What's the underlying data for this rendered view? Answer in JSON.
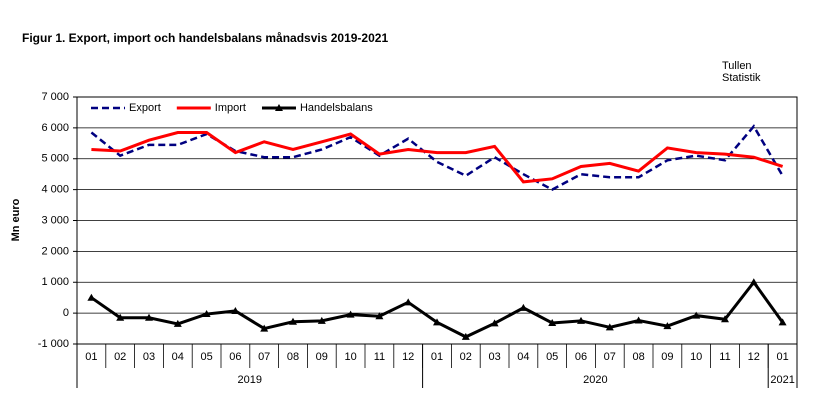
{
  "chart_data": {
    "type": "line",
    "title": "Figur 1. Export, import och handelsbalans månadsvis 2019-2021",
    "source": [
      "Tullen",
      "Statistik"
    ],
    "y_label": "Mn euro",
    "categories": [
      "01",
      "02",
      "03",
      "04",
      "05",
      "06",
      "07",
      "08",
      "09",
      "10",
      "11",
      "12",
      "01",
      "02",
      "03",
      "04",
      "05",
      "06",
      "07",
      "08",
      "09",
      "10",
      "11",
      "12",
      "01"
    ],
    "groups": [
      {
        "label": "2019",
        "count": 12
      },
      {
        "label": "2020",
        "count": 12
      },
      {
        "label": "2021",
        "count": 1
      }
    ],
    "ylim": [
      -1000,
      7000
    ],
    "yticks": [
      {
        "value": -1000,
        "label": "-1 000"
      },
      0,
      {
        "value": 1000,
        "label": "1 000"
      },
      {
        "value": 2000,
        "label": "2 000"
      },
      {
        "value": 3000,
        "label": "3 000"
      },
      {
        "value": 4000,
        "label": "4 000"
      },
      {
        "value": 5000,
        "label": "5 000"
      },
      {
        "value": 6000,
        "label": "6 000"
      },
      {
        "value": 7000,
        "label": "7 000"
      }
    ],
    "grid": true,
    "legend": "upper left",
    "series": [
      {
        "name": "Export",
        "color": "#000080",
        "style": "dashed",
        "marker": "none",
        "values": [
          5850,
          5100,
          5450,
          5450,
          5800,
          5250,
          5050,
          5050,
          5300,
          5700,
          5100,
          5650,
          4900,
          4450,
          5050,
          4500,
          4000,
          4500,
          4400,
          4400,
          4950,
          5100,
          4950,
          6050,
          4450
        ]
      },
      {
        "name": "Import",
        "color": "#ff0000",
        "style": "solid",
        "marker": "none",
        "values": [
          5300,
          5250,
          5600,
          5850,
          5850,
          5200,
          5550,
          5300,
          5550,
          5800,
          5150,
          5300,
          5200,
          5200,
          5400,
          4250,
          4350,
          4750,
          4850,
          4600,
          5350,
          5200,
          5150,
          5050,
          4750
        ]
      },
      {
        "name": "Handelsbalans",
        "color": "#000000",
        "style": "solid",
        "marker": "triangle",
        "values": [
          500,
          -150,
          -150,
          -350,
          -30,
          70,
          -500,
          -280,
          -250,
          -50,
          -100,
          350,
          -300,
          -770,
          -330,
          170,
          -320,
          -250,
          -460,
          -240,
          -420,
          -80,
          -200,
          1000,
          -300
        ]
      }
    ]
  }
}
